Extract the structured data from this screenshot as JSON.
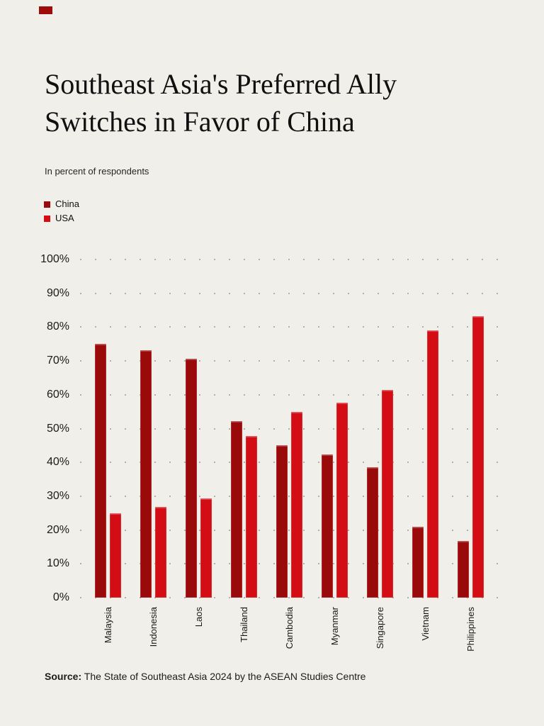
{
  "page": {
    "background_color": "#f1efe9"
  },
  "header": {
    "title_line1": "Southeast Asia's Preferred Ally",
    "title_line2": "Switches in Favor of China",
    "subtitle": "In percent of respondents"
  },
  "legend": {
    "items": [
      {
        "label": "China",
        "color": "#9b0a0b"
      },
      {
        "label": "USA",
        "color": "#d40c13"
      }
    ]
  },
  "chart_data": {
    "type": "bar",
    "title": "Southeast Asia's Preferred Ally Switches in Favor of China",
    "subtitle": "In percent of respondents",
    "categories": [
      "Malaysia",
      "Indonesia",
      "Laos",
      "Thailand",
      "Cambodia",
      "Myanmar",
      "Singapore",
      "Vietnam",
      "Philippines"
    ],
    "series": [
      {
        "name": "China",
        "color": "#9b0a0b",
        "values": [
          75.1,
          73.2,
          70.6,
          52.2,
          45.0,
          42.4,
          38.5,
          21.0,
          16.7
        ]
      },
      {
        "name": "USA",
        "color": "#d40c13",
        "values": [
          24.9,
          26.8,
          29.4,
          47.8,
          55.0,
          57.6,
          61.5,
          79.0,
          83.3
        ]
      }
    ],
    "xlabel": "",
    "ylabel": "",
    "ylim": [
      0,
      100
    ],
    "y_ticks": [
      "0%",
      "10%",
      "20%",
      "30%",
      "40%",
      "50%",
      "60%",
      "70%",
      "80%",
      "90%",
      "100%"
    ],
    "grid": "dotted-horizontal",
    "legend_position": "top-left",
    "grid_dot_color": "#b3b0a9"
  },
  "source": {
    "label": "Source:",
    "text": " The State of Southeast Asia 2024 by the ASEAN Studies Centre"
  }
}
